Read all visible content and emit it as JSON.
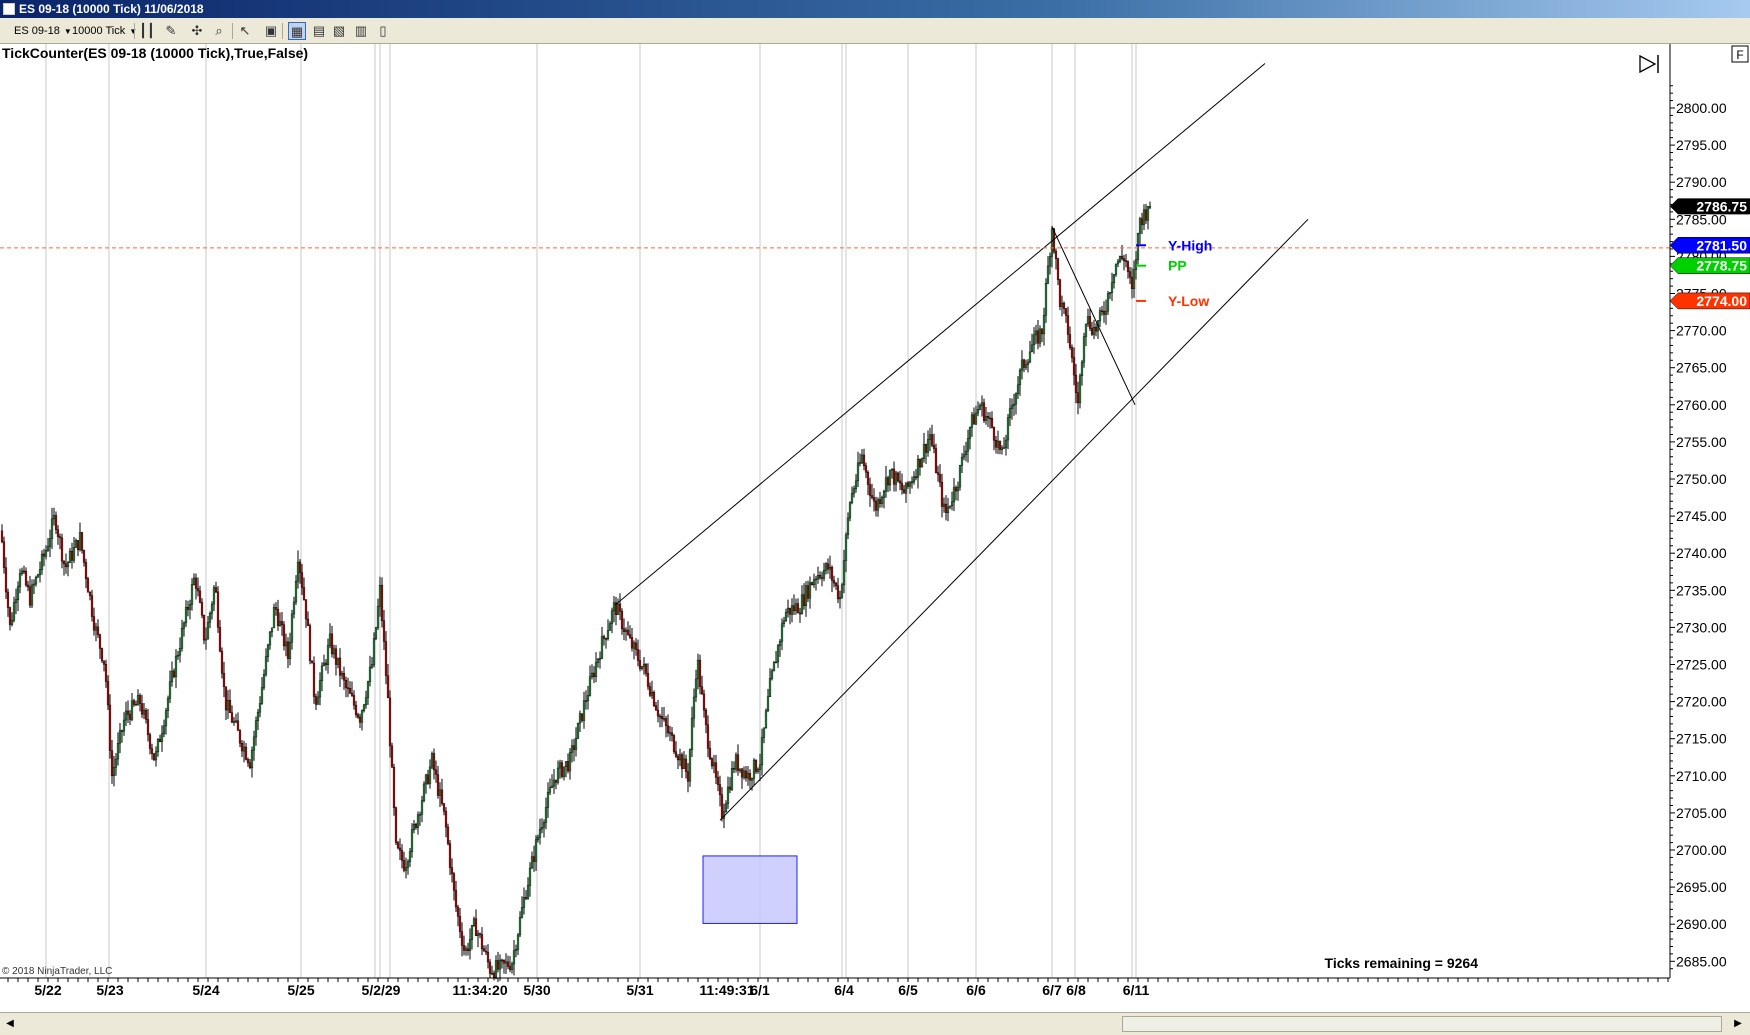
{
  "window": {
    "title": "ES 09-18 (10000 Tick)  11/06/2018"
  },
  "toolbar": {
    "instrument": "ES 09-18",
    "interval": "10000 Tick",
    "icons": [
      "bar-chart-icon",
      "pencil-icon",
      "crosshair-icon",
      "zoom-icon",
      "pointer-icon",
      "chart-style-icon",
      "data-box-icon",
      "properties-icon",
      "strategies-icon",
      "print-icon"
    ]
  },
  "chart": {
    "indicator_label": "TickCounter(ES 09-18 (10000 Tick),True,False)",
    "copyright": "© 2018 NinjaTrader, LLC",
    "ticks_remaining": "Ticks remaining = 9264",
    "f_button": "F"
  },
  "colors": {
    "up_bar": "#1f8a3a",
    "down_bar": "#b00000",
    "y_high": "#0000ff",
    "pp": "#00d000",
    "y_low": "#ff3300",
    "last_price": "#000000",
    "dashed_line": "#ff6633",
    "rect_fill": "#c8c8ff",
    "rect_border": "#2020ff"
  },
  "chart_data": {
    "type": "candlestick",
    "y_axis": {
      "min": 2683,
      "max": 2806,
      "ticks": [
        "2800.00",
        "2795.00",
        "2790.00",
        "2785.00",
        "2780.00",
        "2775.00",
        "2770.00",
        "2765.00",
        "2760.00",
        "2755.00",
        "2750.00",
        "2745.00",
        "2740.00",
        "2735.00",
        "2730.00",
        "2725.00",
        "2720.00",
        "2715.00",
        "2710.00",
        "2705.00",
        "2700.00",
        "2695.00",
        "2690.00",
        "2685.00"
      ]
    },
    "x_labels": [
      "5/22",
      "5/23",
      "5/24",
      "5/25",
      "5/2/29",
      "11:34:20",
      "5/30",
      "5/31",
      "11:49:31",
      "6/1",
      "6/4",
      "6/5",
      "6/6",
      "6/7",
      "6/8",
      "6/11"
    ],
    "price_path": [
      [
        1,
        2743
      ],
      [
        10,
        2730
      ],
      [
        20,
        2738
      ],
      [
        30,
        2734
      ],
      [
        45,
        2740
      ],
      [
        55,
        2745
      ],
      [
        65,
        2738
      ],
      [
        80,
        2742
      ],
      [
        95,
        2730
      ],
      [
        105,
        2725
      ],
      [
        112,
        2710
      ],
      [
        125,
        2718
      ],
      [
        140,
        2720
      ],
      [
        155,
        2712
      ],
      [
        175,
        2725
      ],
      [
        195,
        2737
      ],
      [
        205,
        2728
      ],
      [
        215,
        2736
      ],
      [
        225,
        2720
      ],
      [
        240,
        2715
      ],
      [
        250,
        2712
      ],
      [
        262,
        2722
      ],
      [
        275,
        2733
      ],
      [
        288,
        2726
      ],
      [
        298,
        2740
      ],
      [
        306,
        2732
      ],
      [
        315,
        2720
      ],
      [
        330,
        2728
      ],
      [
        345,
        2722
      ],
      [
        360,
        2718
      ],
      [
        372,
        2725
      ],
      [
        380,
        2735
      ],
      [
        388,
        2720
      ],
      [
        396,
        2700
      ],
      [
        405,
        2698
      ],
      [
        418,
        2705
      ],
      [
        432,
        2712
      ],
      [
        445,
        2704
      ],
      [
        455,
        2693
      ],
      [
        465,
        2686
      ],
      [
        475,
        2690
      ],
      [
        490,
        2684
      ],
      [
        500,
        2684
      ],
      [
        512,
        2685
      ],
      [
        525,
        2694
      ],
      [
        540,
        2703
      ],
      [
        555,
        2710
      ],
      [
        570,
        2712
      ],
      [
        585,
        2720
      ],
      [
        600,
        2727
      ],
      [
        615,
        2733
      ],
      [
        630,
        2728
      ],
      [
        645,
        2724
      ],
      [
        660,
        2718
      ],
      [
        675,
        2714
      ],
      [
        688,
        2710
      ],
      [
        697,
        2726
      ],
      [
        705,
        2717
      ],
      [
        712,
        2712
      ],
      [
        722,
        2705
      ],
      [
        735,
        2712
      ],
      [
        748,
        2710
      ],
      [
        760,
        2712
      ],
      [
        770,
        2722
      ],
      [
        785,
        2732
      ],
      [
        800,
        2733
      ],
      [
        815,
        2737
      ],
      [
        828,
        2738
      ],
      [
        840,
        2734
      ],
      [
        850,
        2747
      ],
      [
        862,
        2753
      ],
      [
        875,
        2746
      ],
      [
        890,
        2751
      ],
      [
        905,
        2748
      ],
      [
        918,
        2752
      ],
      [
        930,
        2756
      ],
      [
        945,
        2745
      ],
      [
        958,
        2750
      ],
      [
        970,
        2757
      ],
      [
        980,
        2760
      ],
      [
        992,
        2757
      ],
      [
        1002,
        2753
      ],
      [
        1012,
        2760
      ],
      [
        1022,
        2765
      ],
      [
        1032,
        2768
      ],
      [
        1042,
        2770
      ],
      [
        1052,
        2784
      ],
      [
        1060,
        2774
      ],
      [
        1068,
        2770
      ],
      [
        1078,
        2760
      ],
      [
        1085,
        2772
      ],
      [
        1095,
        2770
      ],
      [
        1105,
        2773
      ],
      [
        1115,
        2779
      ],
      [
        1125,
        2780
      ],
      [
        1132,
        2775
      ],
      [
        1140,
        2785
      ],
      [
        1150,
        2786.75
      ]
    ],
    "trendlines": [
      {
        "from": [
          615,
          2733
        ],
        "to": [
          1265,
          2806
        ]
      },
      {
        "from": [
          720,
          2704
        ],
        "to": [
          1308,
          2785
        ]
      },
      {
        "from": [
          1052,
          2784
        ],
        "to": [
          1135,
          2760
        ]
      }
    ],
    "rectangle": {
      "x1": 703,
      "x2": 797,
      "y_top": 2699.2,
      "y_bottom": 2690.1
    },
    "levels": [
      {
        "name": "Y-High",
        "value": "2781.50",
        "y": 2781.5
      },
      {
        "name": "PP",
        "value": "2778.75",
        "y": 2778.75
      },
      {
        "name": "Y-Low",
        "value": "2774.00",
        "y": 2774.0
      }
    ],
    "last_price": {
      "value": "2786.75",
      "y": 2786.75
    },
    "dashed_line_y": 2781.15
  }
}
